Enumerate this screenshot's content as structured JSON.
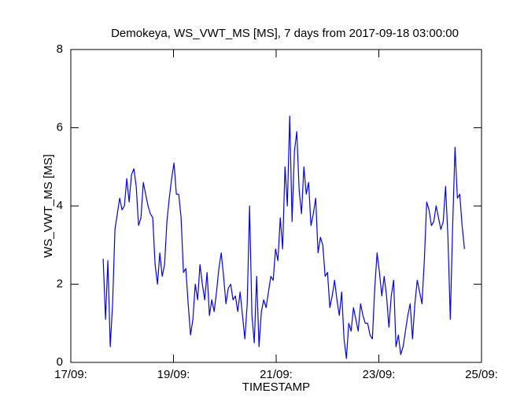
{
  "chart_data": {
    "type": "line",
    "title": "Demokeya, WS_VWT_MS [MS], 7 days from  2017-09-18 03:00:00",
    "x_label": "TIMESTAMP",
    "y_label": "WS_VWT_MS [MS]",
    "xlim": [
      17,
      25
    ],
    "xticks": [
      {
        "value": 17,
        "label": "17/09:"
      },
      {
        "value": 19,
        "label": "19/09:"
      },
      {
        "value": 21,
        "label": "21/09:"
      },
      {
        "value": 23,
        "label": "23/09:"
      },
      {
        "value": 25,
        "label": "25/09:"
      }
    ],
    "ylim": [
      0,
      8
    ],
    "yticks": [
      0,
      2,
      4,
      6,
      8
    ],
    "x": [
      17.63,
      17.676,
      17.722,
      17.768,
      17.814,
      17.86,
      17.906,
      17.952,
      17.998,
      18.044,
      18.09,
      18.136,
      18.182,
      18.228,
      18.274,
      18.32,
      18.366,
      18.412,
      18.458,
      18.504,
      18.55,
      18.596,
      18.642,
      18.688,
      18.734,
      18.78,
      18.826,
      18.872,
      18.918,
      18.964,
      19.01,
      19.056,
      19.102,
      19.148,
      19.194,
      19.24,
      19.286,
      19.332,
      19.378,
      19.424,
      19.47,
      19.516,
      19.562,
      19.608,
      19.654,
      19.7,
      19.746,
      19.792,
      19.838,
      19.884,
      19.93,
      19.976,
      20.022,
      20.068,
      20.114,
      20.16,
      20.206,
      20.252,
      20.298,
      20.344,
      20.39,
      20.436,
      20.482,
      20.528,
      20.574,
      20.62,
      20.666,
      20.712,
      20.758,
      20.804,
      20.85,
      20.896,
      20.942,
      20.988,
      21.034,
      21.08,
      21.126,
      21.172,
      21.218,
      21.264,
      21.31,
      21.356,
      21.402,
      21.448,
      21.494,
      21.54,
      21.586,
      21.632,
      21.678,
      21.724,
      21.77,
      21.816,
      21.862,
      21.908,
      21.954,
      22.0,
      22.046,
      22.092,
      22.138,
      22.184,
      22.23,
      22.276,
      22.322,
      22.368,
      22.414,
      22.46,
      22.506,
      22.552,
      22.598,
      22.644,
      22.69,
      22.736,
      22.782,
      22.828,
      22.874,
      22.92,
      22.966,
      23.012,
      23.058,
      23.104,
      23.15,
      23.196,
      23.242,
      23.288,
      23.334,
      23.38,
      23.426,
      23.472,
      23.518,
      23.564,
      23.61,
      23.656,
      23.702,
      23.748,
      23.794,
      23.84,
      23.886,
      23.932,
      23.978,
      24.024,
      24.07,
      24.116,
      24.162,
      24.208,
      24.254,
      24.3,
      24.346,
      24.392,
      24.438,
      24.484,
      24.53,
      24.576,
      24.622,
      24.668
    ],
    "series": [
      {
        "color": "#0000ff",
        "values": [
          2.65,
          1.1,
          2.6,
          0.4,
          1.5,
          3.4,
          3.8,
          4.2,
          3.9,
          4.0,
          4.7,
          4.1,
          4.8,
          4.95,
          4.5,
          3.5,
          3.7,
          4.6,
          4.3,
          4.0,
          3.8,
          3.7,
          2.5,
          2.0,
          2.8,
          2.2,
          2.5,
          3.6,
          4.2,
          4.7,
          5.1,
          4.3,
          4.3,
          3.7,
          2.3,
          2.4,
          1.5,
          0.7,
          1.1,
          2.0,
          1.6,
          2.5,
          2.0,
          1.6,
          2.3,
          1.2,
          1.6,
          1.3,
          1.8,
          2.4,
          2.8,
          2.2,
          1.5,
          1.9,
          2.0,
          1.6,
          1.7,
          1.3,
          1.8,
          1.2,
          0.6,
          1.5,
          4.0,
          1.2,
          0.5,
          2.2,
          0.4,
          1.3,
          1.6,
          1.4,
          1.8,
          2.2,
          2.1,
          2.9,
          2.6,
          3.7,
          2.9,
          5.0,
          4.0,
          6.3,
          3.6,
          5.4,
          5.9,
          4.4,
          3.8,
          5.0,
          4.3,
          4.6,
          3.5,
          3.8,
          4.2,
          2.8,
          3.2,
          3.0,
          2.2,
          2.3,
          1.4,
          1.7,
          2.1,
          1.6,
          1.2,
          1.8,
          0.6,
          0.1,
          1.0,
          0.8,
          1.4,
          1.1,
          0.8,
          1.5,
          1.2,
          1.0,
          1.0,
          0.7,
          0.6,
          1.9,
          2.8,
          2.3,
          1.7,
          2.2,
          1.7,
          0.9,
          1.7,
          2.1,
          0.4,
          0.7,
          0.2,
          0.4,
          0.8,
          1.2,
          1.5,
          0.6,
          1.5,
          2.1,
          1.8,
          1.5,
          2.6,
          4.1,
          3.9,
          3.5,
          3.6,
          4.0,
          3.7,
          3.4,
          3.6,
          4.5,
          3.2,
          1.1,
          3.5,
          5.5,
          4.2,
          4.3,
          3.5,
          2.9
        ]
      }
    ]
  }
}
